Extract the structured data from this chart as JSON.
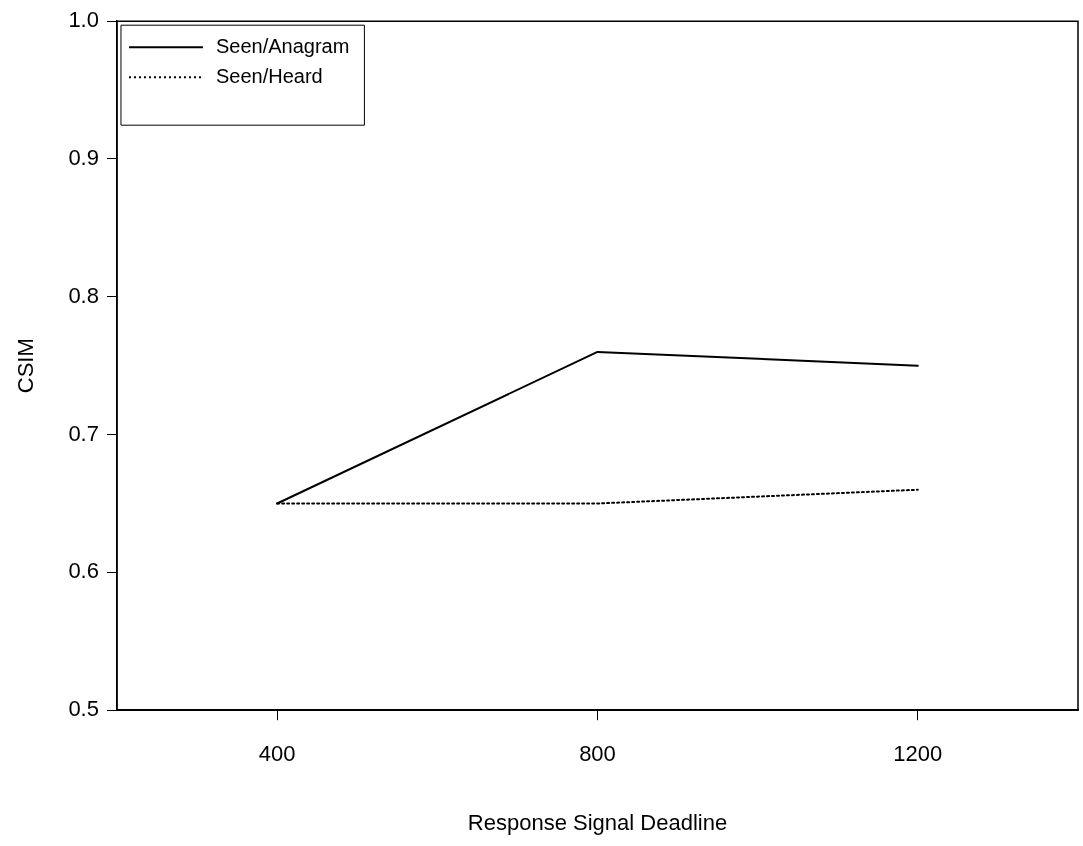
{
  "chart_data": {
    "type": "line",
    "xlabel": "Response Signal Deadline",
    "ylabel": "CSIM",
    "x": [
      400,
      800,
      1200
    ],
    "xlim": [
      200,
      1400
    ],
    "xticks": [
      400,
      800,
      1200
    ],
    "ylim": [
      0.5,
      1.0
    ],
    "yticks": [
      0.5,
      0.6,
      0.7,
      0.8,
      0.9,
      {
        "value": 1.0,
        "label": "1.0"
      }
    ],
    "grid": false,
    "legend": "top left",
    "marker": "none",
    "series": [
      {
        "name": "Seen/Anagram",
        "color": "#000000",
        "line_style": "solid",
        "values": [
          0.65,
          0.76,
          0.75
        ]
      },
      {
        "name": "Seen/Heard",
        "color": "#000000",
        "line_style": "dotted",
        "values": [
          0.65,
          0.65,
          0.66
        ]
      }
    ]
  }
}
